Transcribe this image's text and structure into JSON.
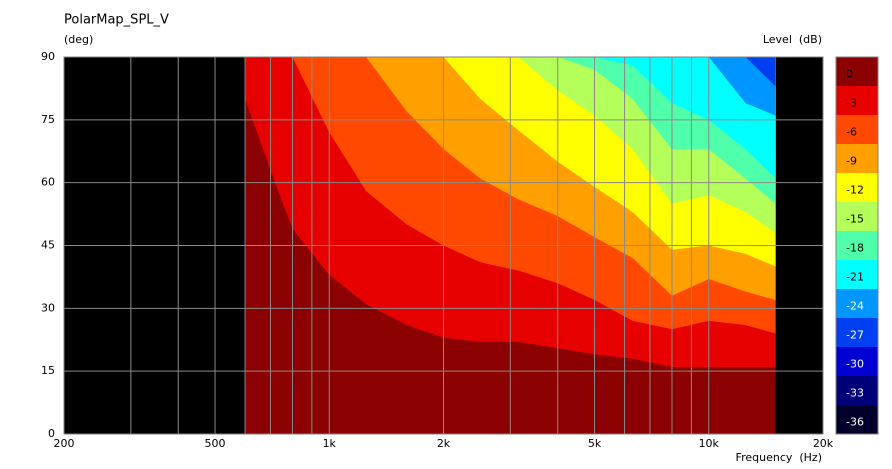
{
  "chart_data": {
    "type": "contour",
    "title": "PolarMap_SPL_V",
    "y_label": "(deg)",
    "x_label": "Frequency  (Hz)",
    "colorbar_label": "Level  (dB)",
    "xscale": "log",
    "xlim": [
      200,
      20000
    ],
    "ylim": [
      0,
      90
    ],
    "xticks": [
      200,
      500,
      {
        "value": 1000,
        "label": "1k"
      },
      {
        "value": 2000,
        "label": "2k"
      },
      {
        "value": 5000,
        "label": "5k"
      },
      {
        "value": 10000,
        "label": "10k"
      },
      {
        "value": 20000,
        "label": "20k"
      }
    ],
    "yticks": [
      0,
      15,
      30,
      45,
      60,
      75,
      90
    ],
    "grid": true,
    "background": "#000000",
    "x": [
      600,
      700,
      800,
      1000,
      1250,
      1600,
      2000,
      2500,
      3150,
      4000,
      5000,
      6300,
      8000,
      10000,
      12500,
      15000
    ],
    "series": [
      {
        "name": "0",
        "color": "#8b0000",
        "values": [
          0,
          0,
          0,
          0,
          0,
          0,
          0,
          0,
          0,
          0,
          0,
          0,
          0,
          0,
          0,
          0
        ]
      },
      {
        "name": "-3",
        "color": "#e60000",
        "values": [
          80,
          63,
          49,
          38,
          31,
          26,
          23,
          22,
          22,
          20.5,
          19,
          18,
          16,
          16,
          16,
          16
        ]
      },
      {
        "name": "-6",
        "color": "#ff4800",
        "values": [
          90,
          90,
          90,
          72,
          58,
          50,
          45,
          41,
          39,
          36,
          32,
          27,
          25,
          27,
          26,
          24
        ]
      },
      {
        "name": "-9",
        "color": "#ffa000",
        "values": [
          90,
          90,
          90,
          90,
          90,
          77,
          68,
          61,
          56,
          52,
          47,
          42,
          33,
          37,
          34,
          32
        ]
      },
      {
        "name": "-12",
        "color": "#ffff00",
        "values": [
          90,
          90,
          90,
          90,
          90,
          90,
          90,
          80,
          72.5,
          65,
          59,
          53,
          44,
          45,
          43,
          40
        ]
      },
      {
        "name": "-15",
        "color": "#b4ff5a",
        "values": [
          90,
          90,
          90,
          90,
          90,
          90,
          90,
          90,
          90,
          82,
          76,
          68,
          55,
          57,
          53,
          48
        ]
      },
      {
        "name": "-18",
        "color": "#50ffaa",
        "values": [
          90,
          90,
          90,
          90,
          90,
          90,
          90,
          90,
          90,
          90,
          87,
          80,
          68,
          68,
          61,
          55
        ]
      },
      {
        "name": "-21",
        "color": "#00ffff",
        "values": [
          90,
          90,
          90,
          90,
          90,
          90,
          90,
          90,
          90,
          90,
          90,
          88,
          79,
          75,
          68,
          61
        ]
      },
      {
        "name": "-24",
        "color": "#0096ff",
        "values": [
          90,
          90,
          90,
          90,
          90,
          90,
          90,
          90,
          90,
          90,
          90,
          90,
          90,
          90,
          79,
          76
        ]
      },
      {
        "name": "-27",
        "color": "#0040f0",
        "values": [
          90,
          90,
          90,
          90,
          90,
          90,
          90,
          90,
          90,
          90,
          90,
          90,
          90,
          90,
          90,
          83
        ]
      },
      {
        "name": "-30",
        "color": "#0000d0",
        "values": [
          null,
          null,
          null,
          null,
          null,
          null,
          null,
          null,
          null,
          null,
          null,
          null,
          null,
          null,
          null,
          null
        ]
      },
      {
        "name": "-33",
        "color": "#000078",
        "values": [
          null,
          null,
          null,
          null,
          null,
          null,
          null,
          null,
          null,
          null,
          null,
          null,
          null,
          null,
          null,
          null
        ]
      },
      {
        "name": "-36",
        "color": "#00002a",
        "values": [
          null,
          null,
          null,
          null,
          null,
          null,
          null,
          null,
          null,
          null,
          null,
          null,
          null,
          null,
          null,
          null
        ]
      }
    ]
  }
}
